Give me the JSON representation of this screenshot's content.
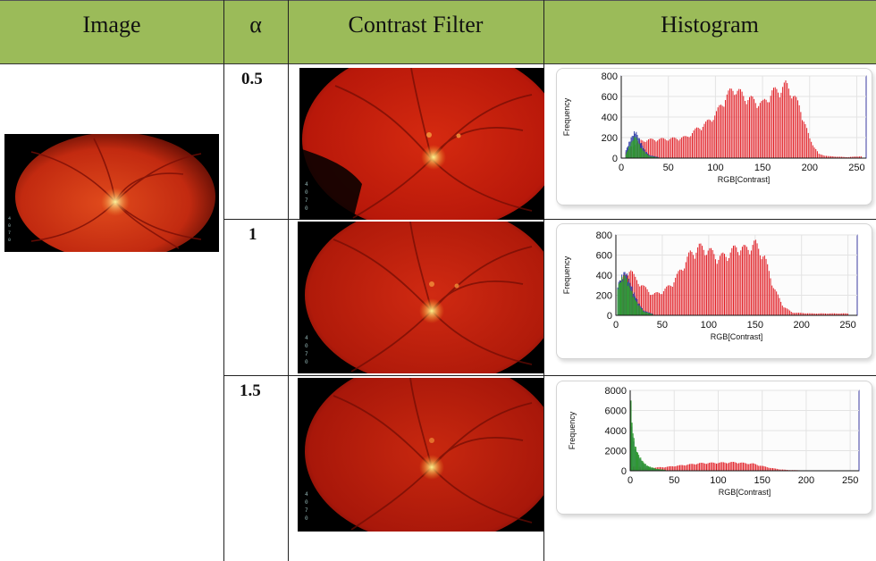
{
  "table": {
    "headers": {
      "image": "Image",
      "alpha": "α",
      "contrast_filter": "Contrast Filter",
      "histogram": "Histogram"
    },
    "rows": [
      {
        "alpha": "0.5"
      },
      {
        "alpha": "1"
      },
      {
        "alpha": "1.5"
      }
    ],
    "colors": {
      "header_bg": "#9bbb59",
      "red": "#e11b22",
      "green": "#2e9b2e",
      "blue": "#2d3da8"
    }
  },
  "chart_data": [
    {
      "type": "bar",
      "xlabel": "RGB[Contrast]",
      "ylabel": "Frequency",
      "xlim": [
        0,
        260
      ],
      "ylim": [
        0,
        800
      ],
      "xticks": [
        0,
        50,
        100,
        150,
        200,
        250
      ],
      "yticks": [
        0,
        200,
        400,
        600,
        800
      ],
      "xtick_labels": [
        "0",
        "50",
        "100",
        "150",
        "200",
        "250"
      ],
      "ytick_labels": [
        "0",
        "200",
        "400",
        "600",
        "800"
      ],
      "series": [
        {
          "color": "red",
          "points": [
            [
              5,
              60
            ],
            [
              12,
              130
            ],
            [
              20,
              180
            ],
            [
              30,
              190
            ],
            [
              40,
              195
            ],
            [
              50,
              200
            ],
            [
              60,
              205
            ],
            [
              70,
              220
            ],
            [
              80,
              300
            ],
            [
              90,
              360
            ],
            [
              100,
              450
            ],
            [
              110,
              620
            ],
            [
              120,
              730
            ],
            [
              130,
              640
            ],
            [
              140,
              600
            ],
            [
              150,
              560
            ],
            [
              160,
              680
            ],
            [
              170,
              720
            ],
            [
              175,
              760
            ],
            [
              180,
              700
            ],
            [
              190,
              520
            ],
            [
              200,
              200
            ],
            [
              210,
              40
            ],
            [
              220,
              20
            ],
            [
              240,
              10
            ],
            [
              255,
              20
            ]
          ]
        },
        {
          "color": "green",
          "points": [
            [
              5,
              40
            ],
            [
              10,
              150
            ],
            [
              15,
              230
            ],
            [
              20,
              120
            ],
            [
              25,
              60
            ],
            [
              30,
              20
            ],
            [
              40,
              5
            ]
          ]
        },
        {
          "color": "blue",
          "points": [
            [
              5,
              80
            ],
            [
              10,
              200
            ],
            [
              15,
              280
            ],
            [
              20,
              180
            ],
            [
              25,
              80
            ],
            [
              30,
              30
            ],
            [
              40,
              10
            ]
          ]
        }
      ]
    },
    {
      "type": "bar",
      "xlabel": "RGB[Contrast]",
      "ylabel": "Frequency",
      "xlim": [
        0,
        260
      ],
      "ylim": [
        0,
        800
      ],
      "xticks": [
        0,
        50,
        100,
        150,
        200,
        250
      ],
      "yticks": [
        0,
        200,
        400,
        600,
        800
      ],
      "xtick_labels": [
        "0",
        "50",
        "100",
        "150",
        "200",
        "250"
      ],
      "ytick_labels": [
        "0",
        "200",
        "400",
        "600",
        "800"
      ],
      "series": [
        {
          "color": "red",
          "points": [
            [
              5,
              360
            ],
            [
              10,
              430
            ],
            [
              15,
              500
            ],
            [
              20,
              400
            ],
            [
              30,
              300
            ],
            [
              40,
              220
            ],
            [
              50,
              250
            ],
            [
              60,
              330
            ],
            [
              70,
              480
            ],
            [
              80,
              650
            ],
            [
              90,
              720
            ],
            [
              100,
              690
            ],
            [
              110,
              610
            ],
            [
              120,
              640
            ],
            [
              130,
              720
            ],
            [
              140,
              700
            ],
            [
              150,
              760
            ],
            [
              160,
              620
            ],
            [
              170,
              300
            ],
            [
              180,
              100
            ],
            [
              190,
              30
            ],
            [
              210,
              20
            ],
            [
              230,
              20
            ],
            [
              250,
              20
            ]
          ]
        },
        {
          "color": "green",
          "points": [
            [
              2,
              300
            ],
            [
              6,
              380
            ],
            [
              10,
              420
            ],
            [
              15,
              300
            ],
            [
              20,
              180
            ],
            [
              25,
              100
            ],
            [
              30,
              40
            ],
            [
              40,
              10
            ]
          ]
        },
        {
          "color": "blue",
          "points": [
            [
              2,
              320
            ],
            [
              6,
              400
            ],
            [
              10,
              460
            ],
            [
              15,
              350
            ],
            [
              20,
              220
            ],
            [
              25,
              120
            ],
            [
              30,
              50
            ],
            [
              40,
              15
            ]
          ]
        }
      ]
    },
    {
      "type": "bar",
      "xlabel": "RGB[Contrast]",
      "ylabel": "Frequency",
      "xlim": [
        0,
        260
      ],
      "ylim": [
        0,
        8000
      ],
      "xticks": [
        0,
        50,
        100,
        150,
        200,
        250
      ],
      "yticks": [
        0,
        2000,
        4000,
        6000,
        8000
      ],
      "xtick_labels": [
        "0",
        "50",
        "100",
        "150",
        "200",
        "250"
      ],
      "ytick_labels": [
        "0",
        "2000",
        "4000",
        "6000",
        "8000"
      ],
      "series": [
        {
          "color": "red",
          "points": [
            [
              2,
              500
            ],
            [
              10,
              400
            ],
            [
              20,
              300
            ],
            [
              40,
              400
            ],
            [
              60,
              600
            ],
            [
              80,
              800
            ],
            [
              100,
              850
            ],
            [
              120,
              900
            ],
            [
              130,
              800
            ],
            [
              140,
              750
            ],
            [
              150,
              500
            ],
            [
              160,
              300
            ],
            [
              170,
              150
            ],
            [
              180,
              80
            ],
            [
              200,
              40
            ],
            [
              230,
              30
            ],
            [
              250,
              20
            ]
          ]
        },
        {
          "color": "green",
          "points": [
            [
              1,
              7000
            ],
            [
              3,
              4000
            ],
            [
              6,
              2500
            ],
            [
              10,
              1600
            ],
            [
              15,
              900
            ],
            [
              20,
              500
            ],
            [
              30,
              200
            ],
            [
              40,
              100
            ]
          ]
        },
        {
          "color": "blue",
          "points": [
            [
              1,
              6500
            ],
            [
              3,
              3600
            ],
            [
              6,
              2200
            ],
            [
              10,
              1400
            ],
            [
              15,
              800
            ],
            [
              20,
              400
            ],
            [
              30,
              150
            ],
            [
              40,
              60
            ]
          ]
        }
      ]
    }
  ]
}
